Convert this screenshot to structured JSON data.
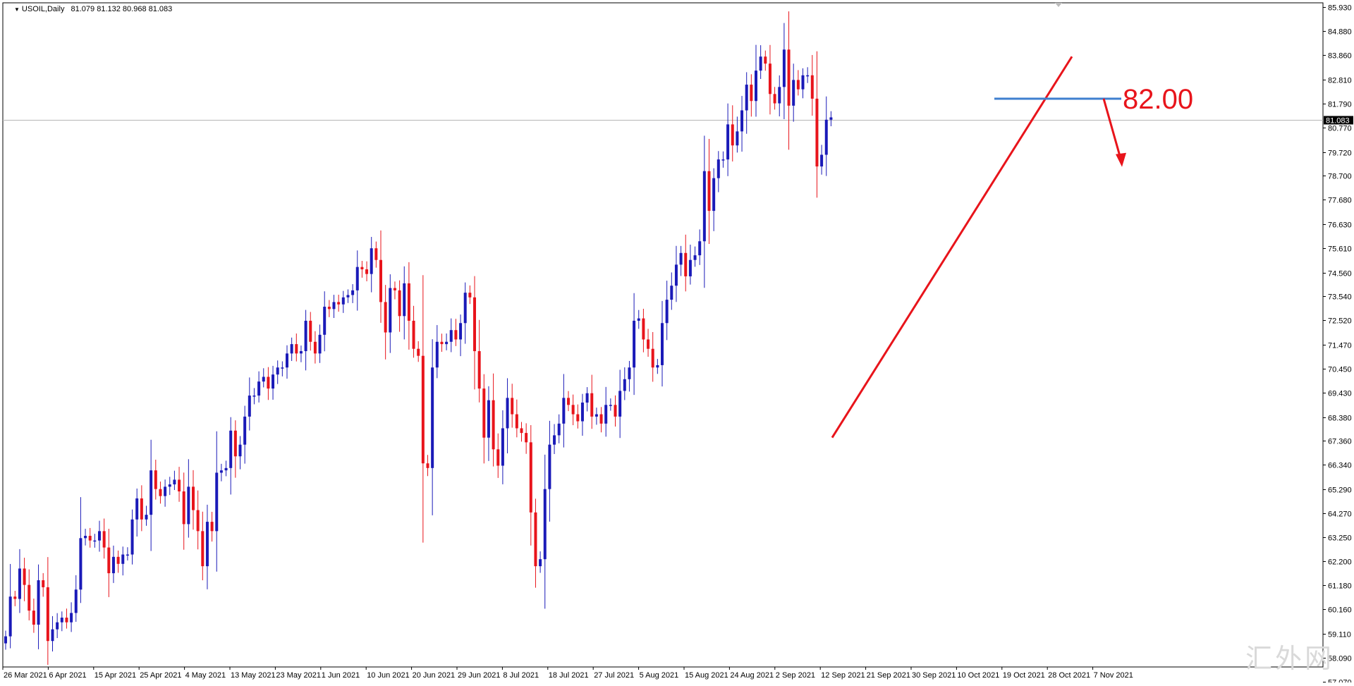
{
  "header": {
    "symbol": "USOIL,Daily",
    "ohlc": "81.079 81.132 80.968 81.083"
  },
  "watermark": "汇外网",
  "annotation": {
    "level_text": "82.00",
    "color": "#e8141b"
  },
  "current_price_label": "81.083",
  "colors": {
    "bull": "#1a1ab8",
    "bear": "#e8141b",
    "level_line": "#3f7fcf",
    "trendline": "#e8141b",
    "frame": "#000000",
    "bg": "#ffffff"
  },
  "chart_data": {
    "type": "candlestick",
    "series_name": "USOIL,Daily",
    "ylim": [
      57.69,
      86.1
    ],
    "y_ticks": [
      "85.930",
      "84.880",
      "83.860",
      "82.810",
      "81.790",
      "80.770",
      "79.720",
      "78.700",
      "77.680",
      "76.630",
      "75.610",
      "74.560",
      "73.540",
      "72.520",
      "71.470",
      "70.450",
      "69.430",
      "68.380",
      "67.360",
      "66.340",
      "65.290",
      "64.270",
      "63.250",
      "62.200",
      "61.180",
      "60.160",
      "59.110",
      "58.090",
      "57.070"
    ],
    "x_tick_labels": [
      "26 Mar 2021",
      "6 Apr 2021",
      "15 Apr 2021",
      "25 Apr 2021",
      "4 May 2021",
      "13 May 2021",
      "23 May 2021",
      "1 Jun 2021",
      "10 Jun 2021",
      "20 Jun 2021",
      "29 Jun 2021",
      "8 Jul 2021",
      "18 Jul 2021",
      "27 Jul 2021",
      "5 Aug 2021",
      "15 Aug 2021",
      "24 Aug 2021",
      "2 Sep 2021",
      "12 Sep 2021",
      "21 Sep 2021",
      "30 Sep 2021",
      "10 Oct 2021",
      "19 Oct 2021",
      "28 Oct 2021",
      "7 Nov 2021"
    ],
    "closes": [
      59.0,
      60.7,
      60.6,
      61.9,
      61.2,
      60.1,
      59.5,
      61.4,
      61.1,
      58.8,
      59.3,
      59.6,
      59.8,
      59.6,
      60.0,
      61.0,
      63.2,
      63.3,
      63.1,
      63.1,
      63.5,
      62.8,
      61.7,
      62.4,
      62.1,
      62.5,
      62.5,
      64.0,
      64.9,
      64.0,
      64.2,
      66.1,
      65.3,
      65.0,
      65.4,
      65.5,
      65.7,
      65.2,
      63.8,
      65.4,
      64.4,
      63.5,
      62.0,
      63.9,
      63.5,
      66.0,
      66.1,
      66.2,
      67.8,
      66.7,
      67.2,
      68.4,
      69.3,
      69.3,
      69.9,
      70.1,
      69.6,
      70.2,
      70.5,
      70.5,
      71.1,
      71.5,
      71.1,
      71.2,
      72.5,
      71.6,
      71.1,
      71.9,
      73.1,
      73.0,
      73.3,
      73.2,
      73.5,
      73.6,
      73.8,
      74.8,
      74.7,
      74.5,
      75.6,
      75.1,
      73.3,
      72.0,
      73.9,
      73.8,
      72.7,
      74.1,
      72.5,
      71.3,
      71.0,
      66.4,
      66.2,
      70.5,
      71.6,
      71.5,
      71.6,
      72.1,
      71.7,
      72.4,
      73.7,
      73.5,
      71.2,
      69.6,
      67.5,
      69.1,
      67.0,
      66.3,
      67.9,
      69.2,
      68.5,
      67.9,
      67.7,
      67.3,
      64.3,
      62.0,
      62.3,
      65.3,
      67.2,
      67.6,
      68.1,
      69.2,
      68.9,
      68.5,
      68.2,
      69.0,
      69.4,
      68.4,
      68.5,
      68.1,
      68.9,
      68.9,
      68.4,
      69.5,
      70.0,
      70.5,
      72.5,
      72.6,
      71.7,
      71.3,
      70.5,
      70.6,
      72.4,
      73.4,
      74.0,
      74.9,
      75.4,
      74.4,
      75.1,
      75.3,
      75.9,
      78.9,
      77.2,
      78.6,
      79.4,
      79.4,
      80.9,
      80.0,
      80.6,
      81.5,
      82.6,
      81.9,
      83.2,
      83.8,
      83.5,
      82.2,
      81.8,
      82.5,
      84.1,
      81.7,
      82.8,
      82.4,
      83.0,
      83.0,
      82.0,
      79.1,
      79.6,
      81.1,
      81.2
    ],
    "ohlc_header": "81.079 81.132 80.968 81.083",
    "last_price": 81.083,
    "horizontal_level": 82.0,
    "trendline": {
      "from_date": "12 Sep 2021",
      "from_price": 67.5,
      "to_date": "28 Oct 2021",
      "to_price": 83.8
    }
  }
}
